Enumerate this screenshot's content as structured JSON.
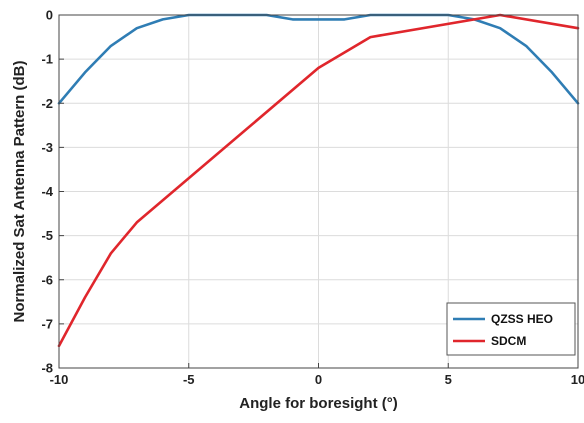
{
  "chart_data": {
    "type": "line",
    "title": "",
    "xlabel": "Angle for boresight (°)",
    "ylabel": "Normalized Sat Antenna Pattern (dB)",
    "xlim": [
      -10,
      10
    ],
    "ylim": [
      -8,
      0
    ],
    "xticks": [
      -10,
      -5,
      0,
      5,
      10
    ],
    "yticks": [
      0,
      -1,
      -2,
      -3,
      -4,
      -5,
      -6,
      -7,
      -8
    ],
    "grid": true,
    "legend_position": "bottom-right",
    "series": [
      {
        "name": "QZSS HEO",
        "color": "#2f7db4",
        "x": [
          -10,
          -9,
          -8,
          -7,
          -6,
          -5,
          -4,
          -3,
          -2,
          -1,
          0,
          1,
          2,
          3,
          4,
          5,
          6,
          7,
          8,
          9,
          10
        ],
        "y": [
          -2.0,
          -1.3,
          -0.7,
          -0.3,
          -0.1,
          0,
          0,
          0,
          0,
          -0.1,
          -0.1,
          -0.1,
          0,
          0,
          0,
          0,
          -0.1,
          -0.3,
          -0.7,
          -1.3,
          -2.0
        ]
      },
      {
        "name": "SDCM",
        "color": "#e0262c",
        "x": [
          -10,
          -9,
          -8,
          -7,
          0,
          2,
          7,
          10
        ],
        "y": [
          -7.5,
          -6.4,
          -5.4,
          -4.7,
          -1.2,
          -0.5,
          0,
          -0.3
        ]
      }
    ]
  }
}
